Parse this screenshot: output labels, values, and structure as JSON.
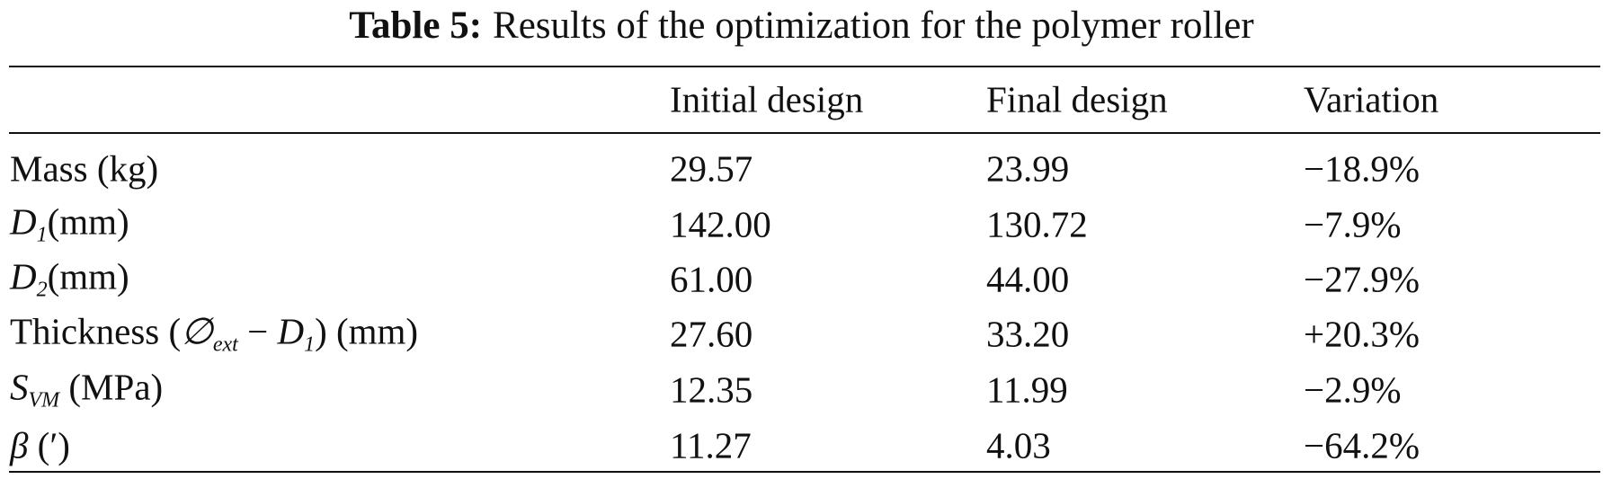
{
  "table": {
    "caption_label": "Table 5:",
    "caption_text": "Results of the optimization for the polymer roller",
    "header": [
      "Initial design",
      "Final design",
      "Variation"
    ],
    "rows": [
      {
        "label": [
          {
            "text": "Mass (kg)",
            "style": "normal"
          }
        ],
        "values": [
          "29.57",
          "23.99",
          "−18.9%"
        ]
      },
      {
        "label": [
          {
            "text": "D",
            "style": "italic"
          },
          {
            "text": "1",
            "style": "sub"
          },
          {
            "text": "(mm)",
            "style": "normal"
          }
        ],
        "values": [
          "142.00",
          "130.72",
          "−7.9%"
        ]
      },
      {
        "label": [
          {
            "text": "D",
            "style": "italic"
          },
          {
            "text": "2",
            "style": "sub"
          },
          {
            "text": "(mm)",
            "style": "normal"
          }
        ],
        "values": [
          "61.00",
          "44.00",
          "−27.9%"
        ]
      },
      {
        "label": [
          {
            "text": "Thickness (",
            "style": "normal"
          },
          {
            "text": "∅",
            "style": "italic"
          },
          {
            "text": "ext",
            "style": "sub"
          },
          {
            "text": " − ",
            "style": "normal"
          },
          {
            "text": "D",
            "style": "italic"
          },
          {
            "text": "1",
            "style": "sub"
          },
          {
            "text": ") (mm)",
            "style": "normal"
          }
        ],
        "values": [
          "27.60",
          "33.20",
          "+20.3%"
        ]
      },
      {
        "label": [
          {
            "text": "S",
            "style": "italic"
          },
          {
            "text": "VM",
            "style": "sub"
          },
          {
            "text": " (MPa)",
            "style": "normal"
          }
        ],
        "values": [
          "12.35",
          "11.99",
          "−2.9%"
        ]
      },
      {
        "label": [
          {
            "text": "β",
            "style": "italic"
          },
          {
            "text": " (′)",
            "style": "normal"
          }
        ],
        "values": [
          "11.27",
          "4.03",
          "−64.2%"
        ]
      }
    ]
  }
}
